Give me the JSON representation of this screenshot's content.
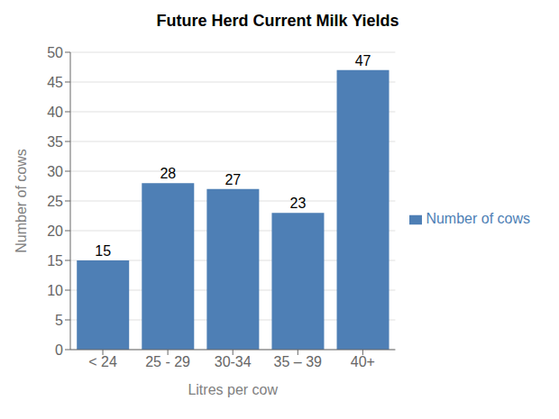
{
  "chart_data": {
    "type": "bar",
    "title": "Future Herd Current Milk Yields",
    "xlabel": "Litres per cow",
    "ylabel": "Number of cows",
    "categories": [
      "< 24",
      "25 - 29",
      "30-34",
      "35 – 39",
      "40+"
    ],
    "series": [
      {
        "name": "Number of cows",
        "color": "#4e7fb5",
        "values": [
          15,
          28,
          27,
          23,
          47
        ]
      }
    ],
    "ylim": [
      0,
      50
    ],
    "yticks": [
      0,
      5,
      10,
      15,
      20,
      25,
      30,
      35,
      40,
      45,
      50
    ],
    "grid": true,
    "legend": "right",
    "data_labels": true
  }
}
